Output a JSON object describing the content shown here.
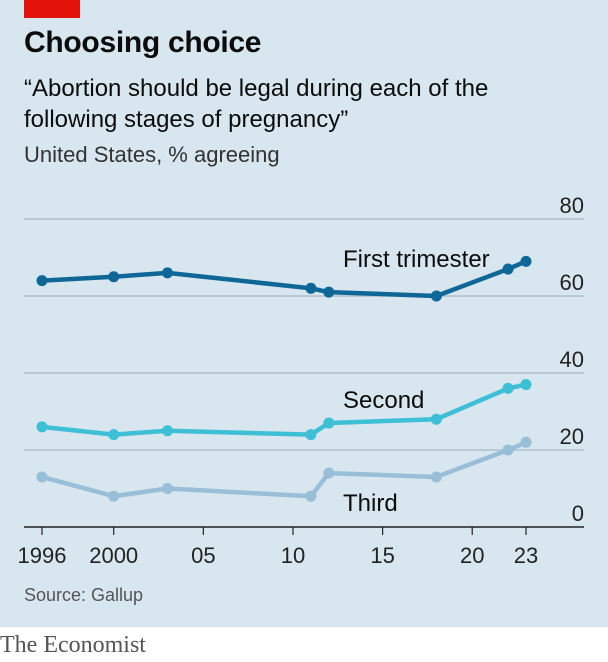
{
  "header": {
    "title": "Choosing choice",
    "subtitle": "“Abortion should be legal during each of the following stages of pregnancy”",
    "unit_line": "United States, % agreeing"
  },
  "footer": {
    "source": "Source: Gallup",
    "brand": "The Economist"
  },
  "colors": {
    "background": "#d7e6ef",
    "accent_tag": "#e3120b",
    "first": "#0e6796",
    "second": "#3dbfd5",
    "third": "#98bfd7",
    "grid": "#a9b9c4"
  },
  "chart_data": {
    "type": "line",
    "title": "Choosing choice",
    "x": [
      1996,
      2000,
      2003,
      2011,
      2012,
      2018,
      2022,
      2023
    ],
    "xlim": [
      1995.5,
      2024.5
    ],
    "x_ticks": [
      1996,
      2000,
      2005,
      2010,
      2015,
      2020,
      2023
    ],
    "x_tick_labels": [
      "1996",
      "2000",
      "05",
      "10",
      "15",
      "20",
      "23"
    ],
    "ylim": [
      0,
      80
    ],
    "y_ticks": [
      0,
      20,
      40,
      60,
      80
    ],
    "y_tick_labels": [
      "0",
      "20",
      "40",
      "60",
      "80"
    ],
    "grid": true,
    "series": [
      {
        "name": "First trimester",
        "values": [
          64,
          65,
          66,
          62,
          61,
          60,
          67,
          69
        ]
      },
      {
        "name": "Second",
        "values": [
          26,
          24,
          25,
          24,
          27,
          28,
          36,
          37
        ]
      },
      {
        "name": "Third",
        "values": [
          13,
          8,
          10,
          8,
          14,
          13,
          20,
          22
        ]
      }
    ]
  }
}
